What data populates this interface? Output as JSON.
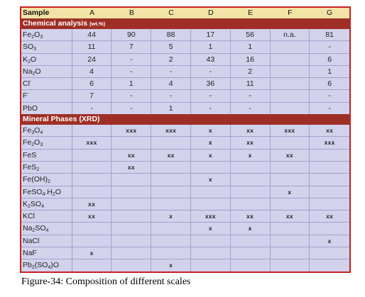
{
  "columns": [
    "Sample",
    "A",
    "B",
    "C",
    "D",
    "E",
    "F",
    "G"
  ],
  "sections": [
    {
      "title": "Chemical analysis",
      "unit": "(wt.%)",
      "rows": [
        {
          "label": "Fe2O3",
          "html": "Fe<sub>2</sub>O<sub>3</sub>",
          "values": [
            "44",
            "90",
            "88",
            "17",
            "56",
            "n.a.",
            "81"
          ]
        },
        {
          "label": "SO3",
          "html": "SO<sub>3</sub>",
          "values": [
            "11",
            "7",
            "5",
            "1",
            "1",
            "",
            "-"
          ]
        },
        {
          "label": "K2O",
          "html": "K<sub>2</sub>O",
          "values": [
            "24",
            "-",
            "2",
            "43",
            "16",
            "",
            "6"
          ]
        },
        {
          "label": "Na2O",
          "html": "Na<sub>2</sub>O",
          "values": [
            "4",
            "-",
            "-",
            "-",
            "2",
            "",
            "1"
          ]
        },
        {
          "label": "Cl-",
          "html": "Cl<sup>-</sup>",
          "values": [
            "6",
            "1",
            "4",
            "36",
            "11",
            "",
            "6"
          ]
        },
        {
          "label": "F-",
          "html": "F<sup>-</sup>",
          "values": [
            "7",
            "-",
            "-",
            "-",
            "-",
            "",
            "-"
          ]
        },
        {
          "label": "PbO",
          "html": "PbO",
          "values": [
            "-",
            "-",
            "1",
            "-",
            "-",
            "",
            "-"
          ]
        }
      ]
    },
    {
      "title": "Mineral Phases (XRD)",
      "unit": "",
      "rows": [
        {
          "label": "Fe3O4",
          "html": "Fe<sub>3</sub>O<sub>4</sub>",
          "values": [
            "",
            "xxx",
            "xxx",
            "x",
            "xx",
            "xxx",
            "xx"
          ]
        },
        {
          "label": "Fe2O3",
          "html": "Fe<sub>2</sub>O<sub>3</sub>",
          "values": [
            "xxx",
            "",
            "",
            "x",
            "xx",
            "",
            "xxx"
          ]
        },
        {
          "label": "FeS",
          "html": "FeS",
          "values": [
            "",
            "xx",
            "xx",
            "x",
            "x",
            "xx",
            ""
          ]
        },
        {
          "label": "FeS2",
          "html": "FeS<sub>2</sub>",
          "values": [
            "",
            "xx",
            "",
            "",
            "",
            "",
            ""
          ]
        },
        {
          "label": "Fe(OH)2",
          "html": "Fe(OH)<sub>2</sub>",
          "values": [
            "",
            "",
            "",
            "x",
            "",
            "",
            ""
          ]
        },
        {
          "label": "FeSO4.H2O",
          "html": "FeSO<sub>4</sub>.H<sub>2</sub>O",
          "values": [
            "",
            "",
            "",
            "",
            "",
            "x",
            ""
          ]
        },
        {
          "label": "K2SO4",
          "html": "K<sub>2</sub>SO<sub>4</sub>",
          "values": [
            "xx",
            "",
            "",
            "",
            "",
            "",
            ""
          ]
        },
        {
          "label": "KCl",
          "html": "KCl",
          "values": [
            "xx",
            "",
            "x",
            "xxx",
            "xx",
            "xx",
            "xx"
          ]
        },
        {
          "label": "Na2SO4",
          "html": "Na<sub>2</sub>SO<sub>4</sub>",
          "values": [
            "",
            "",
            "",
            "x",
            "x",
            "",
            ""
          ]
        },
        {
          "label": "NaCl",
          "html": "NaCl",
          "values": [
            "",
            "",
            "",
            "",
            "",
            "",
            "x"
          ]
        },
        {
          "label": "NaF",
          "html": "NaF",
          "values": [
            "x",
            "",
            "",
            "",
            "",
            "",
            ""
          ]
        },
        {
          "label": "Pb2(SO4)O",
          "html": "Pb<sub>2</sub>(SO<sub>4</sub>)O",
          "values": [
            "",
            "",
            "x",
            "",
            "",
            "",
            ""
          ]
        }
      ]
    }
  ],
  "caption": "Figure-34: Composition of different scales",
  "colors": {
    "border": "#c81f24",
    "header_bg": "#f3e3a6",
    "section_bg": "#9e2f26",
    "cell_bg": "#d2d2ec",
    "grid": "#a2a2cf"
  }
}
